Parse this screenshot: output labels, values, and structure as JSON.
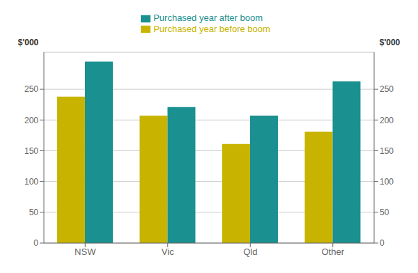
{
  "chart_data": {
    "type": "bar",
    "categories": [
      "NSW",
      "Vic",
      "Qld",
      "Other"
    ],
    "series": [
      {
        "name": "Purchased year before boom",
        "color": "#c8b400",
        "values": [
          238,
          207,
          161,
          181
        ]
      },
      {
        "name": "Purchased year after boom",
        "color": "#1a9090",
        "values": [
          295,
          221,
          207,
          263
        ]
      }
    ],
    "y_label": "$'000",
    "y2_label": "$'000",
    "ylim": [
      0,
      310
    ],
    "yticks": [
      0,
      50,
      100,
      150,
      200,
      250
    ],
    "y2lim": [
      0,
      310
    ],
    "y2ticks": [
      0,
      50,
      100,
      150,
      200,
      250
    ],
    "grid": true,
    "legend": "top"
  }
}
